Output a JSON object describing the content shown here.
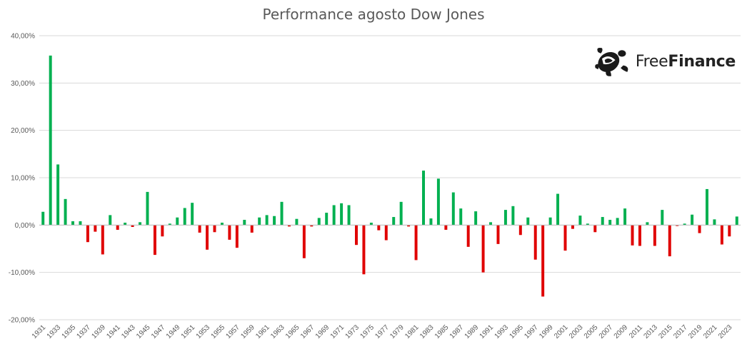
{
  "logo": {
    "name_part1": "Free",
    "name_part2": "Finance",
    "icon": "turtle-icon"
  },
  "chart_data": {
    "type": "bar",
    "title": "Performance agosto Dow Jones",
    "xlabel": "",
    "ylabel": "",
    "ylim": [
      -20,
      40
    ],
    "yticks": [
      40,
      30,
      20,
      10,
      0,
      -10,
      -20
    ],
    "ytick_labels": [
      "40,00%",
      "30,00%",
      "20,00%",
      "10,00%",
      "0,00%",
      "-10,00%",
      "-20,00%"
    ],
    "grid": true,
    "legend": "none",
    "colors": {
      "positive": "#00b050",
      "negative": "#e00000",
      "grid": "#d9d9d9",
      "axis": "#bfbfbf"
    },
    "categories": [
      "1931",
      "1932",
      "1933",
      "1934",
      "1935",
      "1936",
      "1937",
      "1938",
      "1939",
      "1940",
      "1941",
      "1942",
      "1943",
      "1944",
      "1945",
      "1946",
      "1947",
      "1948",
      "1949",
      "1950",
      "1951",
      "1952",
      "1953",
      "1954",
      "1955",
      "1956",
      "1957",
      "1958",
      "1959",
      "1960",
      "1961",
      "1962",
      "1963",
      "1964",
      "1965",
      "1966",
      "1967",
      "1968",
      "1969",
      "1970",
      "1971",
      "1972",
      "1973",
      "1974",
      "1975",
      "1976",
      "1977",
      "1978",
      "1979",
      "1980",
      "1981",
      "1982",
      "1983",
      "1984",
      "1985",
      "1986",
      "1987",
      "1988",
      "1989",
      "1990",
      "1991",
      "1992",
      "1993",
      "1994",
      "1995",
      "1996",
      "1997",
      "1998",
      "1999",
      "2000",
      "2001",
      "2002",
      "2003",
      "2004",
      "2005",
      "2006",
      "2007",
      "2008",
      "2009",
      "2010",
      "2011",
      "2012",
      "2013",
      "2014",
      "2015",
      "2016",
      "2017",
      "2018",
      "2019",
      "2020",
      "2021",
      "2022",
      "2023",
      "2024"
    ],
    "tick_labels": [
      "1931",
      "1933",
      "1935",
      "1937",
      "1939",
      "1941",
      "1943",
      "1945",
      "1947",
      "1949",
      "1951",
      "1953",
      "1955",
      "1957",
      "1959",
      "1961",
      "1963",
      "1965",
      "1967",
      "1969",
      "1971",
      "1973",
      "1975",
      "1977",
      "1979",
      "1981",
      "1983",
      "1985",
      "1987",
      "1989",
      "1991",
      "1993",
      "1995",
      "1997",
      "1999",
      "2001",
      "2003",
      "2005",
      "2007",
      "2009",
      "2011",
      "2013",
      "2015",
      "2017",
      "2019",
      "2021",
      "2023"
    ],
    "values": [
      2.8,
      35.8,
      12.8,
      5.5,
      0.8,
      0.8,
      -3.6,
      -1.4,
      -6.2,
      2.1,
      -1.0,
      0.5,
      -0.4,
      0.6,
      7.0,
      -6.3,
      -2.4,
      0.3,
      1.6,
      3.6,
      4.7,
      -1.6,
      -5.2,
      -1.5,
      0.5,
      -3.1,
      -4.8,
      1.1,
      -1.6,
      1.6,
      2.1,
      1.9,
      4.9,
      -0.3,
      1.3,
      -7.0,
      -0.3,
      1.5,
      2.6,
      4.2,
      4.6,
      4.2,
      -4.2,
      -10.4,
      0.5,
      -1.1,
      -3.2,
      1.7,
      4.9,
      -0.3,
      -7.4,
      11.5,
      1.4,
      9.8,
      -1.0,
      6.9,
      3.5,
      -4.6,
      2.9,
      -10.0,
      0.6,
      -4.0,
      3.2,
      4.0,
      -2.1,
      1.6,
      -7.3,
      -15.1,
      1.6,
      6.6,
      -5.4,
      -0.8,
      2.0,
      0.3,
      -1.5,
      1.7,
      1.1,
      1.5,
      3.5,
      -4.3,
      -4.4,
      0.6,
      -4.4,
      3.2,
      -6.6,
      -0.2,
      0.3,
      2.2,
      -1.7,
      7.6,
      1.2,
      -4.1,
      -2.4,
      1.8
    ]
  }
}
